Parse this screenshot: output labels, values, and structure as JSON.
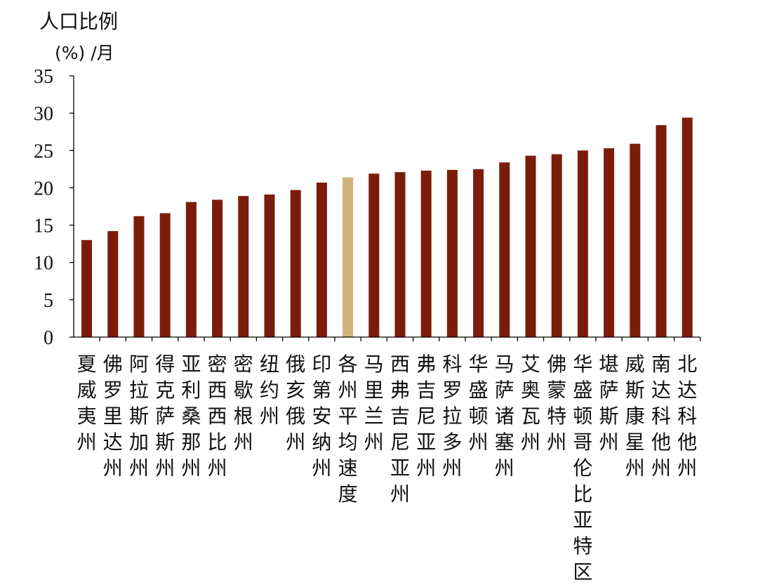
{
  "chart_data": {
    "type": "bar",
    "ylabel": "人口比例",
    "yunit": "(%) /月",
    "ylim": [
      0,
      35
    ],
    "yticks": [
      0,
      5,
      10,
      15,
      20,
      25,
      30,
      35
    ],
    "categories": [
      "夏威夷州",
      "佛罗里达州",
      "阿拉斯加州",
      "得克萨斯州",
      "亚利桑那州",
      "密西西比州",
      "密歇根州",
      "纽约州",
      "俄亥俄州",
      "印第安纳州",
      "各州平均速度",
      "马里兰州",
      "西弗吉尼亚州",
      "弗吉尼亚州",
      "科罗拉多州",
      "华盛顿州",
      "马萨诸塞州",
      "艾奥瓦州",
      "佛蒙特州",
      "华盛顿哥伦比亚特区",
      "堪萨斯州",
      "威斯康星州",
      "南达科他州",
      "北达科他州"
    ],
    "values": [
      13.0,
      14.2,
      16.2,
      16.6,
      18.1,
      18.4,
      18.9,
      19.1,
      19.7,
      20.7,
      21.4,
      21.9,
      22.1,
      22.3,
      22.4,
      22.5,
      23.4,
      24.3,
      24.5,
      25.0,
      25.3,
      25.9,
      28.4,
      29.4
    ],
    "highlight_index": 10,
    "colors": {
      "bar": "#7B1C0A",
      "highlight": "#D2B27C",
      "axis": "#000000"
    },
    "grid": false,
    "legend": "none"
  }
}
